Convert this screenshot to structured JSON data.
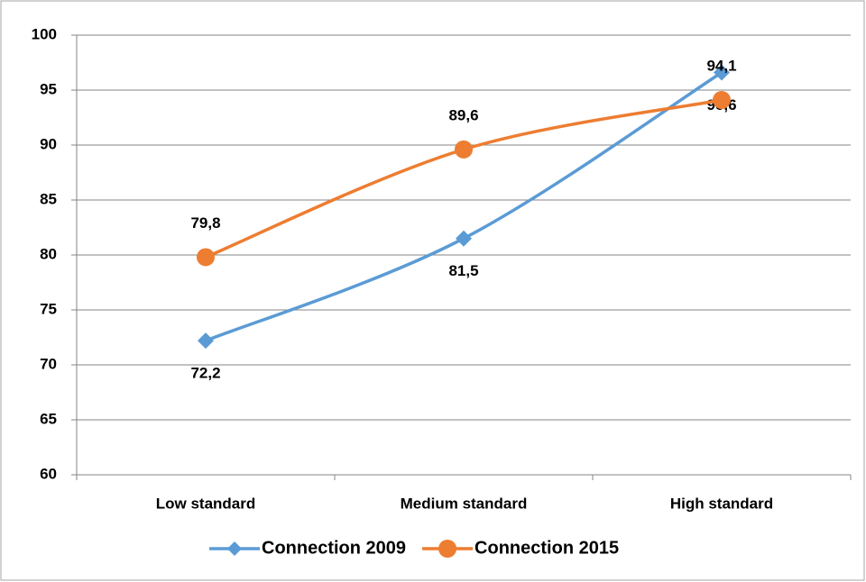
{
  "chart_data": {
    "type": "line",
    "categories": [
      "Low standard",
      "Medium standard",
      "High standard"
    ],
    "series": [
      {
        "name": "Connection 2009",
        "color": "#5b9bd5",
        "marker": "diamond",
        "label_position": "below",
        "values": [
          72.2,
          81.5,
          96.6
        ],
        "value_labels": [
          "72,2",
          "81,5",
          "96,6"
        ]
      },
      {
        "name": "Connection 2015",
        "color": "#ed7d31",
        "marker": "circle",
        "label_position": "above",
        "values": [
          79.8,
          89.6,
          94.1
        ],
        "value_labels": [
          "79,8",
          "89,6",
          "94,1"
        ]
      }
    ],
    "ylim": [
      60,
      100
    ],
    "yticks": [
      60,
      65,
      70,
      75,
      80,
      85,
      90,
      95,
      100
    ],
    "grid": true,
    "smooth": true,
    "legend": "bottom"
  }
}
